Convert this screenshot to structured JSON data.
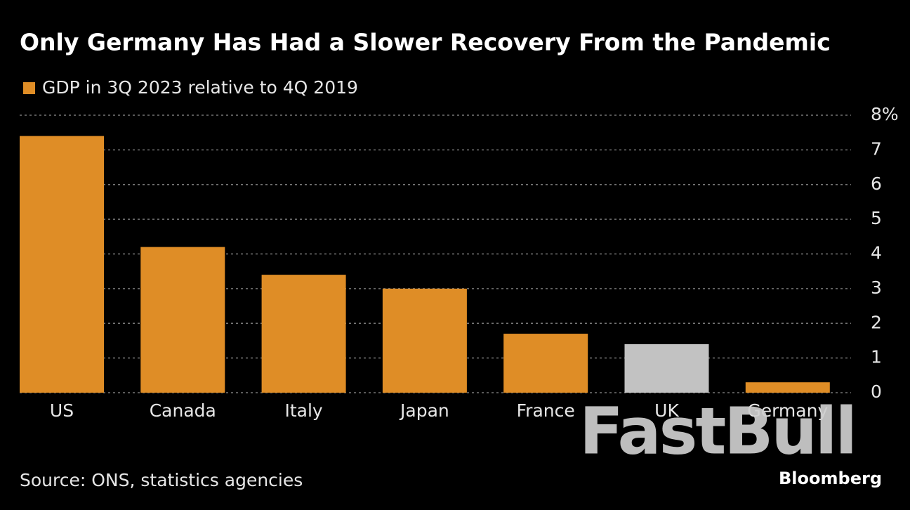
{
  "chart_data": {
    "type": "bar",
    "title": "Only Germany Has Had a Slower Recovery From the Pandemic",
    "categories": [
      "US",
      "Canada",
      "Italy",
      "Japan",
      "France",
      "UK",
      "Germany"
    ],
    "series": [
      {
        "name": "GDP in 3Q 2023 relative to 4Q 2019",
        "color": "#df8d26",
        "values": [
          7.4,
          4.2,
          3.4,
          3.0,
          1.7,
          1.4,
          0.3
        ],
        "colors": [
          "#df8d26",
          "#df8d26",
          "#df8d26",
          "#df8d26",
          "#df8d26",
          "#c2c2c2",
          "#df8d26"
        ]
      }
    ],
    "ylim": [
      0,
      8
    ],
    "yticks": [
      0,
      1,
      2,
      3,
      4,
      5,
      6,
      7,
      {
        "value": 8,
        "label": "8%"
      }
    ],
    "grid": true,
    "source": "Source: ONS, statistics agencies",
    "brand": "Bloomberg",
    "watermark": "FastBull"
  }
}
